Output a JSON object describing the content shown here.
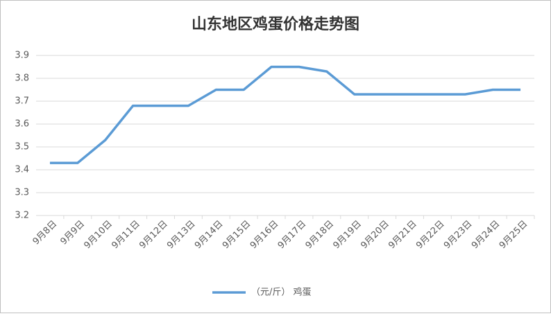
{
  "chart_data": {
    "type": "line",
    "title": "山东地区鸡蛋价格走势图",
    "categories": [
      "9月8日",
      "9月9日",
      "9月10日",
      "9月11日",
      "9月12日",
      "9月13日",
      "9月14日",
      "9月15日",
      "9月16日",
      "9月17日",
      "9月18日",
      "9月19日",
      "9月20日",
      "9月21日",
      "9月22日",
      "9月23日",
      "9月24日",
      "9月25日"
    ],
    "series": [
      {
        "name": "（元/斤） 鸡蛋",
        "color": "#5b9bd5",
        "values": [
          3.43,
          3.43,
          3.53,
          3.68,
          3.68,
          3.68,
          3.75,
          3.75,
          3.85,
          3.85,
          3.83,
          3.73,
          3.73,
          3.73,
          3.73,
          3.73,
          3.75,
          3.75
        ]
      }
    ],
    "ylim": [
      3.2,
      3.9
    ],
    "yticks": [
      3.2,
      3.3,
      3.4,
      3.5,
      3.6,
      3.7,
      3.8,
      3.9
    ],
    "grid": true,
    "legend": "bottom"
  }
}
